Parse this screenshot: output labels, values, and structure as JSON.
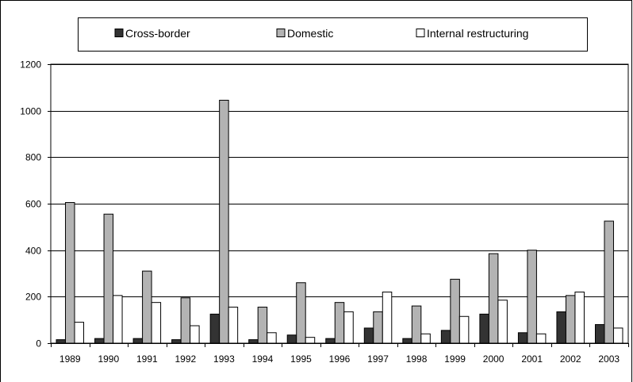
{
  "chart_data": {
    "type": "bar",
    "title": "",
    "xlabel": "",
    "ylabel": "",
    "ylim": [
      0,
      1200
    ],
    "yticks": [
      0,
      200,
      400,
      600,
      800,
      1000,
      1200
    ],
    "grid": true,
    "legend_position": "top",
    "categories": [
      "1989",
      "1990",
      "1991",
      "1992",
      "1993",
      "1994",
      "1995",
      "1996",
      "1997",
      "1998",
      "1999",
      "2000",
      "2001",
      "2002",
      "2003"
    ],
    "series": [
      {
        "name": "Cross-border",
        "color": "#333333",
        "values": [
          15,
          20,
          20,
          15,
          125,
          15,
          35,
          20,
          65,
          20,
          55,
          125,
          45,
          135,
          80
        ]
      },
      {
        "name": "Domestic",
        "color": "#b3b3b3",
        "values": [
          605,
          555,
          310,
          195,
          1045,
          155,
          260,
          175,
          135,
          160,
          275,
          385,
          400,
          205,
          525
        ]
      },
      {
        "name": "Internal restructuring",
        "color": "#ffffff",
        "values": [
          90,
          205,
          175,
          75,
          155,
          45,
          25,
          135,
          220,
          40,
          115,
          185,
          40,
          220,
          65
        ]
      }
    ]
  }
}
